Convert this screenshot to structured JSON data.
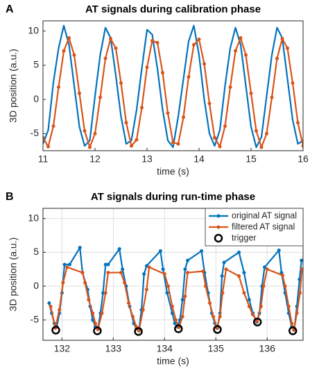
{
  "chart_data": [
    {
      "type": "line",
      "panel_label": "A",
      "title": "AT signals during calibration phase",
      "xlabel": "time (s)",
      "ylabel": "3D position (a.u.)",
      "xlim": [
        11,
        16
      ],
      "ylim": [
        -7.5,
        11.5
      ],
      "xticks": [
        11,
        12,
        13,
        14,
        15,
        16
      ],
      "yticks": [
        -5,
        0,
        5,
        10
      ],
      "grid": false,
      "series": [
        {
          "color": "#0072bd",
          "marker": false,
          "x": [
            11.0,
            11.1,
            11.2,
            11.3,
            11.4,
            11.5,
            11.6,
            11.7,
            11.8,
            11.9,
            12.0,
            12.1,
            12.2,
            12.3,
            12.4,
            12.5,
            12.6,
            12.7,
            12.8,
            12.9,
            13.0,
            13.1,
            13.2,
            13.3,
            13.4,
            13.5,
            13.6,
            13.7,
            13.8,
            13.9,
            14.0,
            14.1,
            14.2,
            14.3,
            14.4,
            14.5,
            14.6,
            14.7,
            14.8,
            14.9,
            15.0,
            15.1,
            15.2,
            15.3,
            15.4,
            15.5,
            15.6,
            15.7,
            15.8,
            15.9,
            16.0
          ],
          "values": [
            -6.5,
            -4.5,
            2.5,
            7.5,
            10.8,
            8.0,
            2.0,
            -4.0,
            -6.8,
            -6.0,
            0.5,
            6.5,
            10.5,
            9.0,
            3.5,
            -2.5,
            -6.5,
            -6.0,
            -1.5,
            4.5,
            10.2,
            9.5,
            4.5,
            -1.5,
            -6.0,
            -7.0,
            -2.5,
            3.0,
            8.5,
            10.8,
            6.5,
            0.0,
            -5.0,
            -6.8,
            -4.5,
            2.0,
            7.5,
            10.5,
            8.0,
            2.0,
            -4.0,
            -7.0,
            -5.5,
            0.5,
            6.5,
            10.5,
            9.0,
            3.0,
            -3.0,
            -6.5,
            -6.0
          ]
        },
        {
          "color": "#d95319",
          "marker": true,
          "x": [
            11.0,
            11.1,
            11.2,
            11.3,
            11.4,
            11.5,
            11.6,
            11.7,
            11.8,
            11.9,
            12.0,
            12.1,
            12.2,
            12.3,
            12.4,
            12.5,
            12.6,
            12.7,
            12.8,
            12.9,
            13.0,
            13.1,
            13.2,
            13.3,
            13.4,
            13.5,
            13.6,
            13.7,
            13.8,
            13.9,
            14.0,
            14.1,
            14.2,
            14.3,
            14.4,
            14.5,
            14.6,
            14.7,
            14.8,
            14.9,
            15.0,
            15.1,
            15.2,
            15.3,
            15.4,
            15.5,
            15.6,
            15.7,
            15.8,
            15.9,
            16.0
          ],
          "values": [
            -5.6,
            -6.9,
            -3.9,
            1.8,
            7.1,
            9.0,
            6.5,
            0.9,
            -4.6,
            -7.0,
            -5.0,
            0.3,
            6.0,
            8.9,
            7.5,
            2.4,
            -3.4,
            -6.8,
            -5.9,
            -1.2,
            4.7,
            8.6,
            8.3,
            3.9,
            -2.0,
            -6.3,
            -6.5,
            -2.6,
            3.3,
            8.0,
            8.8,
            5.2,
            -0.6,
            -5.6,
            -6.9,
            -3.9,
            1.8,
            7.1,
            9.0,
            6.5,
            0.9,
            -4.6,
            -7.0,
            -5.0,
            0.3,
            6.0,
            8.9,
            7.5,
            2.4,
            -3.4,
            -6.8
          ]
        }
      ]
    },
    {
      "type": "line",
      "panel_label": "B",
      "title": "AT signals during run-time phase",
      "xlabel": "time (s)",
      "ylabel": "3D position (a.u.)",
      "xlim": [
        131.63,
        136.7
      ],
      "ylim": [
        -8,
        11.5
      ],
      "xticks": [
        132,
        133,
        134,
        135,
        136
      ],
      "yticks": [
        -5,
        0,
        5,
        10
      ],
      "grid": true,
      "legend": "upper right",
      "series": [
        {
          "name": "original AT signal",
          "color": "#0072bd",
          "marker": true,
          "x": [
            131.75,
            131.8,
            131.85,
            131.9,
            131.95,
            132.0,
            132.05,
            132.15,
            132.35,
            132.4,
            132.5,
            132.55,
            132.6,
            132.65,
            132.7,
            132.75,
            132.8,
            132.85,
            132.9,
            133.12,
            133.18,
            133.25,
            133.32,
            133.4,
            133.45,
            133.5,
            133.55,
            133.6,
            133.65,
            133.92,
            133.97,
            134.05,
            134.15,
            134.2,
            134.25,
            134.3,
            134.35,
            134.4,
            134.45,
            134.72,
            134.78,
            134.85,
            134.92,
            134.98,
            135.03,
            135.08,
            135.12,
            135.16,
            135.45,
            135.55,
            135.65,
            135.72,
            135.8,
            135.85,
            135.9,
            135.95,
            136.23,
            136.28,
            136.35,
            136.42,
            136.48,
            136.53,
            136.58,
            136.63,
            136.67
          ],
          "values": [
            -2.5,
            -4,
            -5.5,
            -6,
            -4,
            -1,
            3.2,
            3.2,
            5.7,
            2,
            -0.5,
            -3,
            -5,
            -6,
            -6.3,
            -4,
            -1,
            3.2,
            3.2,
            5.5,
            2.5,
            0,
            -3,
            -5.5,
            -6.3,
            -6.5,
            -3.5,
            1.8,
            3.0,
            5.2,
            2.5,
            -1,
            -4,
            -5.5,
            -6,
            -5,
            -2,
            2.5,
            3.8,
            5.2,
            2,
            -1,
            -4,
            -5.5,
            -6.2,
            -4,
            1.5,
            3.5,
            5.0,
            2,
            -2,
            -4,
            -5.3,
            -4,
            0,
            2.8,
            5.3,
            2,
            -1,
            -4,
            -6,
            -6.3,
            -3,
            1,
            3.8
          ]
        },
        {
          "name": "filtered AT signal",
          "color": "#d95319",
          "marker": true,
          "x": [
            131.78,
            131.87,
            131.95,
            132.02,
            132.1,
            132.4,
            132.45,
            132.52,
            132.6,
            132.65,
            132.7,
            132.78,
            132.85,
            132.9,
            133.15,
            133.22,
            133.3,
            133.38,
            133.45,
            133.5,
            133.58,
            133.65,
            133.7,
            134.0,
            134.07,
            134.15,
            134.22,
            134.28,
            134.35,
            134.4,
            134.45,
            134.75,
            134.8,
            134.88,
            134.95,
            135.02,
            135.08,
            135.13,
            135.2,
            135.45,
            135.55,
            135.65,
            135.72,
            135.8,
            135.88,
            135.93,
            136.0,
            136.3,
            136.35,
            136.42,
            136.48,
            136.52,
            136.58,
            136.64,
            136.68
          ],
          "values": [
            -3,
            -6.2,
            -3.5,
            0.5,
            2.8,
            2.0,
            0.5,
            -2,
            -4,
            -5.5,
            -6.4,
            -4,
            -1,
            2.0,
            2.0,
            0.5,
            -2.5,
            -4.5,
            -6,
            -6.6,
            -3.5,
            -0.5,
            2.8,
            1.8,
            0,
            -3,
            -5,
            -6.1,
            -4.5,
            -1.5,
            2.0,
            2.2,
            0,
            -2.5,
            -4.5,
            -6.2,
            -4.5,
            -1,
            2.5,
            1.5,
            -1,
            -3,
            -4.2,
            -5.2,
            -3,
            0,
            2.5,
            1.6,
            0,
            -3,
            -5.5,
            -6.5,
            -4,
            -1,
            2.5
          ]
        },
        {
          "name": "trigger",
          "color": "#000000",
          "marker": "open-circle",
          "line": false,
          "x": [
            131.88,
            132.69,
            133.49,
            134.27,
            135.03,
            135.81,
            136.5
          ],
          "values": [
            -6.5,
            -6.6,
            -6.7,
            -6.3,
            -6.4,
            -5.3,
            -6.6
          ]
        }
      ]
    }
  ]
}
